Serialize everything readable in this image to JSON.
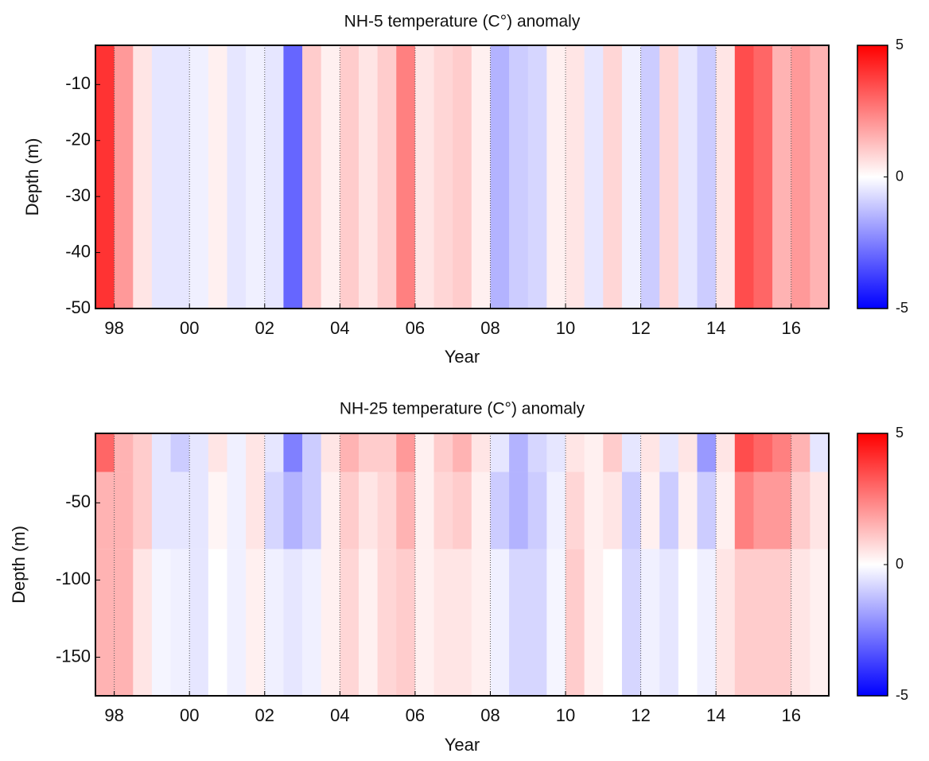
{
  "chart_data": [
    {
      "type": "heatmap",
      "title": "NH-5 temperature (C°) anomaly",
      "xlabel": "Year",
      "ylabel": "Depth (m)",
      "x": [
        1997.5,
        1998,
        1998.5,
        1999,
        1999.5,
        2000,
        2000.5,
        2001,
        2001.5,
        2002,
        2002.5,
        2003,
        2003.5,
        2004,
        2004.5,
        2005,
        2005.5,
        2006,
        2006.5,
        2007,
        2007.5,
        2008,
        2008.5,
        2009,
        2009.5,
        2010,
        2010.5,
        2011,
        2011.5,
        2012,
        2012.5,
        2013,
        2013.5,
        2014,
        2014.5,
        2015,
        2015.5,
        2016,
        2016.5
      ],
      "depth_bins": [
        -3,
        -50
      ],
      "values": [
        [
          4,
          2,
          0.5,
          -0.5,
          -0.5,
          -0.3,
          0.3,
          -0.5,
          -0.3,
          -0.5,
          -3,
          1,
          0.3,
          1,
          0.5,
          1,
          2.5,
          0.5,
          0.8,
          1,
          0.3,
          -1.5,
          -1,
          -0.8,
          0.3,
          0.5,
          -0.5,
          0.8,
          -0.3,
          -1,
          0.8,
          -0.5,
          -1,
          0.5,
          3.5,
          3,
          1.5,
          2,
          1.5
        ]
      ],
      "xlim": [
        1997.5,
        2017
      ],
      "ylim": [
        -50,
        -3
      ],
      "xticks": [
        {
          "value": 1998,
          "label": "98"
        },
        {
          "value": 2000,
          "label": "00"
        },
        {
          "value": 2002,
          "label": "02"
        },
        {
          "value": 2004,
          "label": "04"
        },
        {
          "value": 2006,
          "label": "06"
        },
        {
          "value": 2008,
          "label": "08"
        },
        {
          "value": 2010,
          "label": "10"
        },
        {
          "value": 2012,
          "label": "12"
        },
        {
          "value": 2014,
          "label": "14"
        },
        {
          "value": 2016,
          "label": "16"
        }
      ],
      "yticks": [
        -10,
        -20,
        -30,
        -40,
        -50
      ],
      "grid_x": true,
      "colormap": [
        "#0000ff",
        "#ffffff",
        "#ff0000"
      ],
      "clim": [
        -5,
        5
      ],
      "cticks": [
        -5,
        0,
        5
      ]
    },
    {
      "type": "heatmap",
      "title": "NH-25 temperature (C°) anomaly",
      "xlabel": "Year",
      "ylabel": "Depth (m)",
      "x": [
        1997.5,
        1998,
        1998.5,
        1999,
        1999.5,
        2000,
        2000.5,
        2001,
        2001.5,
        2002,
        2002.5,
        2003,
        2003.5,
        2004,
        2004.5,
        2005,
        2005.5,
        2006,
        2006.5,
        2007,
        2007.5,
        2008,
        2008.5,
        2009,
        2009.5,
        2010,
        2010.5,
        2011,
        2011.5,
        2012,
        2012.5,
        2013,
        2013.5,
        2014,
        2014.5,
        2015,
        2015.5,
        2016,
        2016.5
      ],
      "depth_bins": [
        -5,
        -30,
        -80,
        -175
      ],
      "values": [
        [
          3,
          1.5,
          1,
          -0.5,
          -1,
          -0.5,
          0.5,
          -0.3,
          0.5,
          -0.5,
          -2.5,
          -1,
          0.5,
          1.5,
          1,
          1,
          2,
          0.3,
          1,
          1.5,
          0.5,
          -0.5,
          -1.5,
          -0.8,
          -0.5,
          0.5,
          0.3,
          1,
          -0.5,
          0.5,
          -0.5,
          0.5,
          -2,
          0.5,
          3.5,
          3,
          2.5,
          1.5,
          -0.5
        ],
        [
          1.5,
          1.5,
          1,
          -0.5,
          -0.5,
          -0.5,
          0.2,
          -0.3,
          0.5,
          -0.8,
          -1.5,
          -1,
          0.3,
          1,
          0.5,
          0.8,
          1.5,
          0.3,
          0.8,
          1,
          0.3,
          -1,
          -1.5,
          -1,
          -0.3,
          0.8,
          0.3,
          0.5,
          -1,
          0.3,
          -1,
          0.3,
          -1,
          0.3,
          2.5,
          2,
          2,
          1,
          0.5
        ],
        [
          1.5,
          1.5,
          0.5,
          -0.2,
          -0.3,
          -0.5,
          0,
          -0.3,
          0.3,
          -0.3,
          -0.5,
          -0.3,
          0.3,
          0.8,
          0.3,
          0.8,
          1,
          0.3,
          0.5,
          0.5,
          0.3,
          -0.3,
          -0.8,
          -0.8,
          -0.2,
          1,
          0.3,
          0,
          -0.8,
          -0.3,
          -0.5,
          0,
          -0.3,
          0.5,
          1,
          1,
          1,
          0.5,
          0.3
        ]
      ],
      "xlim": [
        1997.5,
        2017
      ],
      "ylim": [
        -175,
        -5
      ],
      "xticks": [
        {
          "value": 1998,
          "label": "98"
        },
        {
          "value": 2000,
          "label": "00"
        },
        {
          "value": 2002,
          "label": "02"
        },
        {
          "value": 2004,
          "label": "04"
        },
        {
          "value": 2006,
          "label": "06"
        },
        {
          "value": 2008,
          "label": "08"
        },
        {
          "value": 2010,
          "label": "10"
        },
        {
          "value": 2012,
          "label": "12"
        },
        {
          "value": 2014,
          "label": "14"
        },
        {
          "value": 2016,
          "label": "16"
        }
      ],
      "yticks": [
        -50,
        -100,
        -150
      ],
      "grid_x": true,
      "colormap": [
        "#0000ff",
        "#ffffff",
        "#ff0000"
      ],
      "clim": [
        -5,
        5
      ],
      "cticks": [
        -5,
        0,
        5
      ]
    }
  ]
}
